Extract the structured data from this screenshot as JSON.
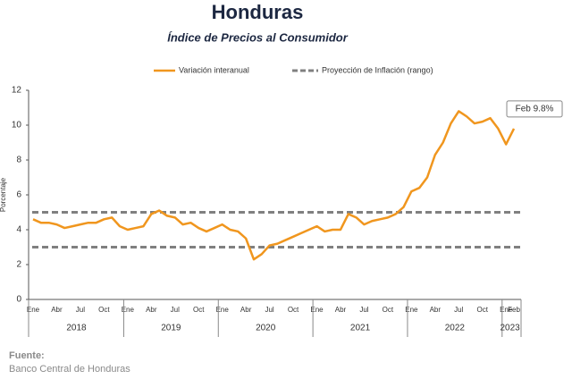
{
  "chart_data": {
    "type": "line",
    "title": "Honduras",
    "subtitle": "Índice de Precios al Consumidor",
    "y_label": "Porcentaje",
    "categories": [
      "Ene",
      null,
      null,
      "Abr",
      null,
      null,
      "Jul",
      null,
      null,
      "Oct",
      null,
      null,
      "Ene",
      null,
      null,
      "Abr",
      null,
      null,
      "Jul",
      null,
      null,
      "Oct",
      null,
      null,
      "Ene",
      null,
      null,
      "Abr",
      null,
      null,
      "Jul",
      null,
      null,
      "Oct",
      null,
      null,
      "Ene",
      null,
      null,
      "Abr",
      null,
      null,
      "Jul",
      null,
      null,
      "Oct",
      null,
      null,
      "Ene",
      null,
      null,
      "Abr",
      null,
      null,
      "Jul",
      null,
      null,
      "Oct",
      null,
      null,
      "Ene",
      "Feb"
    ],
    "year_labels": [
      "2018",
      "2019",
      "2020",
      "2021",
      "2022",
      "2023"
    ],
    "series": [
      {
        "name": "Variación interanual",
        "color": "#f0961e",
        "values": [
          4.6,
          4.4,
          4.4,
          4.3,
          4.1,
          4.2,
          4.3,
          4.4,
          4.4,
          4.6,
          4.7,
          4.2,
          4.0,
          4.1,
          4.2,
          4.9,
          5.1,
          4.8,
          4.7,
          4.3,
          4.4,
          4.1,
          3.9,
          4.1,
          4.3,
          4.0,
          3.9,
          3.5,
          2.3,
          2.6,
          3.1,
          3.2,
          3.4,
          3.6,
          3.8,
          4.0,
          4.2,
          3.9,
          4.0,
          4.0,
          4.9,
          4.7,
          4.3,
          4.5,
          4.6,
          4.7,
          4.9,
          5.3,
          6.2,
          6.4,
          7.0,
          8.3,
          9.0,
          10.1,
          10.8,
          10.5,
          10.1,
          10.2,
          10.4,
          9.8,
          8.9,
          9.8
        ],
        "value_labels": [
          null,
          null,
          null,
          null,
          null,
          null,
          null,
          null,
          null,
          null,
          null,
          null,
          null,
          null,
          null,
          null,
          null,
          null,
          null,
          null,
          null,
          null,
          null,
          null,
          null,
          null,
          null,
          null,
          null,
          null,
          null,
          null,
          null,
          null,
          null,
          null,
          null,
          null,
          null,
          null,
          null,
          null,
          null,
          null,
          null,
          null,
          null,
          null,
          null,
          null,
          null,
          null,
          null,
          null,
          null,
          null,
          null,
          null,
          null,
          null,
          null,
          "Feb 9.8%"
        ]
      }
    ],
    "projection": {
      "name": "Proyección de Inflación (rango)",
      "color": "#808080",
      "values": [
        3,
        5
      ]
    },
    "ylim": [
      0,
      12
    ],
    "yticks": [
      0,
      2,
      4,
      6,
      8,
      10,
      12
    ],
    "source_title": "Fuente:",
    "source": "Banco Central de Honduras"
  }
}
